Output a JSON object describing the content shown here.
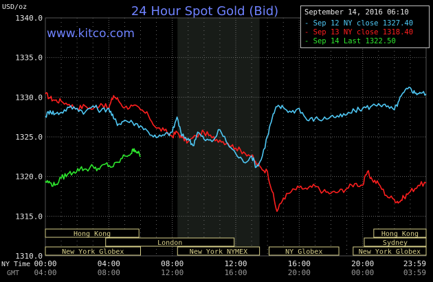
{
  "page": {
    "title": "24 Hour Spot Gold (Bid)",
    "site": "www.kitco.com",
    "timestamp": "September 14, 2016 06:10"
  },
  "colors": {
    "background": "#000000",
    "grid": "#6b6b6b",
    "title": "#6f82ff",
    "sep12": "#4fc8f5",
    "sep13": "#ff1f1f",
    "sep14": "#2ee82e",
    "nymex_shade": "#181c18"
  },
  "chart_data": {
    "type": "line",
    "title": "24 Hour Spot Gold (Bid)",
    "ylabel": "USD/oz",
    "ylim": [
      1310,
      1340
    ],
    "xlim": [
      0,
      24
    ],
    "grid": true,
    "legend_position": "top-right",
    "y_ticks": [
      "1340.0",
      "1335.0",
      "1330.0",
      "1325.0",
      "1320.0",
      "1315.0",
      "1310.0"
    ],
    "x_ticks_ny": [
      "00:00",
      "04:00",
      "08:00",
      "12:00",
      "16:00",
      "20:00",
      "23:59"
    ],
    "x_ticks_gmt": [
      "04:00",
      "08:00",
      "12:00",
      "16:00",
      "20:00",
      "00:00",
      "03:59"
    ],
    "x_tick_hours": [
      0,
      4,
      8,
      12,
      16,
      20,
      24
    ],
    "row_label_ny": "NY Time",
    "row_label_gmt": "GMT",
    "shaded_session_hours": [
      8.33,
      13.5
    ],
    "sessions": [
      {
        "label": "Hong Kong",
        "row": 0,
        "start": 0.0,
        "end": 5.9
      },
      {
        "label": "London",
        "row": 1,
        "start": 3.8,
        "end": 11.9
      },
      {
        "label": "New York Globex",
        "row": 2,
        "start": 0.0,
        "end": 6.0
      },
      {
        "label": "New York NYMEX",
        "row": 2,
        "start": 8.33,
        "end": 13.5
      },
      {
        "label": "NY Globex",
        "row": 2,
        "start": 14.1,
        "end": 18.5
      },
      {
        "label": "Hong Kong",
        "row": 0,
        "start": 20.7,
        "end": 24.0
      },
      {
        "label": "Sydney",
        "row": 1,
        "start": 20.1,
        "end": 24.0
      },
      {
        "label": "New York Globex",
        "row": 2,
        "start": 19.4,
        "end": 24.0
      }
    ],
    "series": [
      {
        "name": "Sep 12 NY close 1327.40",
        "color_key": "sep12",
        "x": [
          0,
          0.3,
          0.6,
          1,
          1.5,
          2,
          2.5,
          3,
          3.5,
          4,
          4.3,
          4.6,
          5,
          5.5,
          6,
          6.5,
          7,
          7.5,
          8,
          8.3,
          8.6,
          9,
          9.3,
          9.6,
          10,
          10.5,
          11,
          11.5,
          12,
          12.5,
          13,
          13.3,
          13.6,
          14,
          14.3,
          14.6,
          15,
          15.5,
          16,
          16.5,
          17,
          17.5,
          18,
          18.5,
          19,
          19.5,
          20,
          20.5,
          21,
          21.5,
          22,
          22.3,
          22.6,
          23,
          23.3,
          23.6,
          24
        ],
        "values": [
          1327.6,
          1328.3,
          1327.9,
          1328.1,
          1328.7,
          1328.6,
          1328.1,
          1328.9,
          1328.3,
          1328.6,
          1327.3,
          1326.6,
          1327.1,
          1326.8,
          1326.4,
          1325.6,
          1324.9,
          1325.2,
          1325.6,
          1327.5,
          1325.1,
          1324.8,
          1323.9,
          1325.6,
          1324.7,
          1324.4,
          1325.9,
          1324.1,
          1322.9,
          1321.8,
          1322.6,
          1321.2,
          1322.1,
          1325.1,
          1327.4,
          1328.8,
          1328.7,
          1328.1,
          1328.6,
          1327.1,
          1327.3,
          1327.2,
          1327.6,
          1327.5,
          1327.8,
          1328.3,
          1328.6,
          1328.8,
          1329.2,
          1328.8,
          1328.4,
          1329.6,
          1330.6,
          1331.2,
          1330.5,
          1330.6,
          1330.4
        ]
      },
      {
        "name": "Sep 13 NY close 1318.40",
        "color_key": "sep13",
        "x": [
          0,
          0.3,
          0.6,
          1,
          1.5,
          2,
          2.5,
          3,
          3.5,
          4,
          4.3,
          4.6,
          5,
          5.5,
          6,
          6.5,
          7,
          7.5,
          8,
          8.3,
          8.6,
          9,
          9.5,
          10,
          10.5,
          11,
          11.5,
          12,
          12.5,
          13,
          13.3,
          13.6,
          14,
          14.3,
          14.6,
          15,
          15.5,
          16,
          16.5,
          17,
          17.5,
          18,
          18.5,
          19,
          19.5,
          20,
          20.3,
          20.6,
          21,
          21.5,
          22,
          22.3,
          22.6,
          23,
          23.5,
          24
        ],
        "values": [
          1330.4,
          1329.9,
          1329.6,
          1329.5,
          1329.1,
          1328.6,
          1328.9,
          1328.5,
          1329.2,
          1328.6,
          1330.2,
          1329.6,
          1328.7,
          1328.9,
          1328.4,
          1327.7,
          1326.1,
          1325.8,
          1325.1,
          1325.6,
          1324.9,
          1324.4,
          1325.1,
          1325.6,
          1324.9,
          1324.6,
          1324.2,
          1323.6,
          1323.1,
          1322.6,
          1321.6,
          1321.1,
          1320.6,
          1318.1,
          1315.6,
          1317.3,
          1318.1,
          1318.6,
          1318.4,
          1318.8,
          1318.1,
          1317.9,
          1318.1,
          1318.5,
          1319.1,
          1318.9,
          1320.6,
          1319.6,
          1319.1,
          1317.6,
          1317.1,
          1316.8,
          1317.4,
          1318.1,
          1318.9,
          1319.2
        ]
      },
      {
        "name": "Sep 14 Last 1322.50",
        "color_key": "sep14",
        "x": [
          0,
          0.3,
          0.6,
          1,
          1.4,
          1.8,
          2.2,
          2.6,
          3,
          3.4,
          3.8,
          4.2,
          4.6,
          5,
          5.4,
          5.6,
          5.8,
          6
        ],
        "values": [
          1319.4,
          1319.2,
          1318.9,
          1319.8,
          1320.3,
          1320.6,
          1321.0,
          1320.9,
          1321.3,
          1320.9,
          1321.6,
          1321.2,
          1321.8,
          1322.6,
          1322.9,
          1323.5,
          1323.1,
          1322.5
        ]
      }
    ]
  }
}
